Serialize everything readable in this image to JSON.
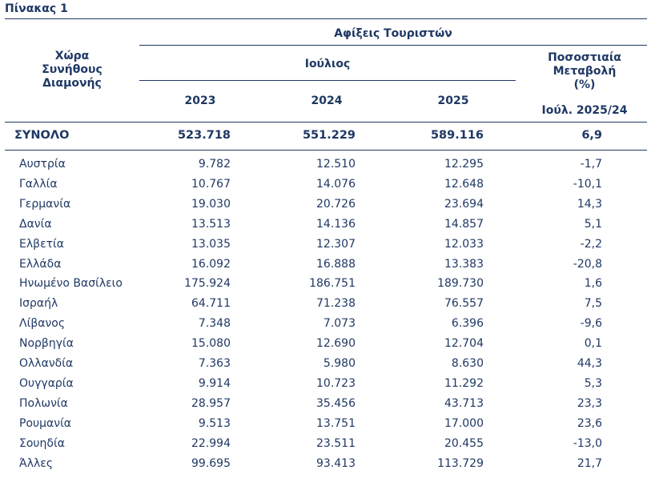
{
  "table_title": "Πίνακας 1",
  "header": {
    "country_col": [
      "Χώρα",
      "Συνήθους",
      "Διαμονής"
    ],
    "arrivals": "Αφίξεις Τουριστών",
    "month": "Ιούλιος",
    "years": [
      "2023",
      "2024",
      "2025"
    ],
    "change_col": [
      "Ποσοστιαία",
      "Μεταβολή",
      "(%)"
    ],
    "change_period": "Ιούλ. 2025/24"
  },
  "total": {
    "label": "ΣΥΝΟΛΟ",
    "v2023": "523.718",
    "v2024": "551.229",
    "v2025": "589.116",
    "change": "6,9"
  },
  "rows": [
    {
      "country": "Αυστρία",
      "v2023": "9.782",
      "v2024": "12.510",
      "v2025": "12.295",
      "change": "-1,7"
    },
    {
      "country": "Γαλλία",
      "v2023": "10.767",
      "v2024": "14.076",
      "v2025": "12.648",
      "change": "-10,1"
    },
    {
      "country": "Γερμανία",
      "v2023": "19.030",
      "v2024": "20.726",
      "v2025": "23.694",
      "change": "14,3"
    },
    {
      "country": "Δανία",
      "v2023": "13.513",
      "v2024": "14.136",
      "v2025": "14.857",
      "change": "5,1"
    },
    {
      "country": "Ελβετία",
      "v2023": "13.035",
      "v2024": "12.307",
      "v2025": "12.033",
      "change": "-2,2"
    },
    {
      "country": "Ελλάδα",
      "v2023": "16.092",
      "v2024": "16.888",
      "v2025": "13.383",
      "change": "-20,8"
    },
    {
      "country": "Ηνωμένο Βασίλειο",
      "v2023": "175.924",
      "v2024": "186.751",
      "v2025": "189.730",
      "change": "1,6"
    },
    {
      "country": "Ισραήλ",
      "v2023": "64.711",
      "v2024": "71.238",
      "v2025": "76.557",
      "change": "7,5"
    },
    {
      "country": "Λίβανος",
      "v2023": "7.348",
      "v2024": "7.073",
      "v2025": "6.396",
      "change": "-9,6"
    },
    {
      "country": "Νορβηγία",
      "v2023": "15.080",
      "v2024": "12.690",
      "v2025": "12.704",
      "change": "0,1"
    },
    {
      "country": "Ολλανδία",
      "v2023": "7.363",
      "v2024": "5.980",
      "v2025": "8.630",
      "change": "44,3"
    },
    {
      "country": "Ουγγαρία",
      "v2023": "9.914",
      "v2024": "10.723",
      "v2025": "11.292",
      "change": "5,3"
    },
    {
      "country": "Πολωνία",
      "v2023": "28.957",
      "v2024": "35.456",
      "v2025": "43.713",
      "change": "23,3"
    },
    {
      "country": "Ρουμανία",
      "v2023": "9.513",
      "v2024": "13.751",
      "v2025": "17.000",
      "change": "23,6"
    },
    {
      "country": "Σουηδία",
      "v2023": "22.994",
      "v2024": "23.511",
      "v2025": "20.455",
      "change": "-13,0"
    },
    {
      "country": "Άλλες",
      "v2023": "99.695",
      "v2024": "93.413",
      "v2025": "113.729",
      "change": "21,7"
    }
  ]
}
